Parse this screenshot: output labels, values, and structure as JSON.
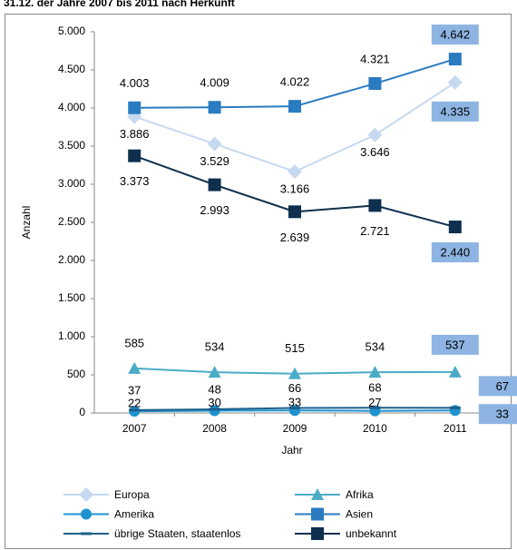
{
  "chart_data": {
    "type": "line",
    "title": "31.12. der Jahre 2007 bis 2011 nach Herkunft",
    "x_label": "Jahr",
    "y_label": "Anzahl",
    "categories": [
      "2007",
      "2008",
      "2009",
      "2010",
      "2011"
    ],
    "ylim": [
      0,
      5000
    ],
    "yticks": [
      0,
      500,
      {
        "value": 1000,
        "label": "1.000"
      },
      {
        "value": 1500,
        "label": "1.500"
      },
      {
        "value": 2000,
        "label": "2.000"
      },
      {
        "value": 2500,
        "label": "2.500"
      },
      {
        "value": 3000,
        "label": "3.000"
      },
      {
        "value": 3500,
        "label": "3.500"
      },
      {
        "value": 4000,
        "label": "4.000"
      },
      {
        "value": 4500,
        "label": "4.500"
      },
      {
        "value": 5000,
        "label": "5.000"
      }
    ],
    "series": [
      {
        "name": "Europa",
        "color": "#c6d9f1",
        "marker": "diamond",
        "values": [
          3886,
          3529,
          3166,
          3646,
          4335
        ],
        "value_labels": [
          "3.886",
          "3.529",
          "3.166",
          "3.646",
          "4.335"
        ]
      },
      {
        "name": "Afrika",
        "color": "#4bacc6",
        "marker": "triangle",
        "values": [
          585,
          534,
          515,
          534,
          537
        ],
        "value_labels": [
          "585",
          "534",
          "515",
          "534",
          "537"
        ]
      },
      {
        "name": "Amerika",
        "color": "#1f93d0",
        "marker": "circle",
        "values": [
          22,
          30,
          33,
          27,
          33
        ],
        "value_labels": [
          "22",
          "30",
          "33",
          "27",
          "33"
        ]
      },
      {
        "name": "Asien",
        "color": "#2a7bc0",
        "marker": "square",
        "values": [
          4003,
          4009,
          4022,
          4321,
          4642
        ],
        "value_labels": [
          "4.003",
          "4.009",
          "4.022",
          "4.321",
          "4.642"
        ]
      },
      {
        "name": "übrige Staaten, staatenlos",
        "color": "#1d5f8a",
        "marker": "dash",
        "values": [
          37,
          48,
          66,
          68,
          67
        ],
        "value_labels": [
          "37",
          "48",
          "66",
          "68",
          "67"
        ]
      },
      {
        "name": "unbekannt",
        "color": "#0e2f4e",
        "marker": "square",
        "values": [
          3373,
          2993,
          2639,
          2721,
          2440
        ],
        "value_labels": [
          "3.373",
          "2.993",
          "2.639",
          "2.721",
          "2.440"
        ]
      }
    ]
  }
}
